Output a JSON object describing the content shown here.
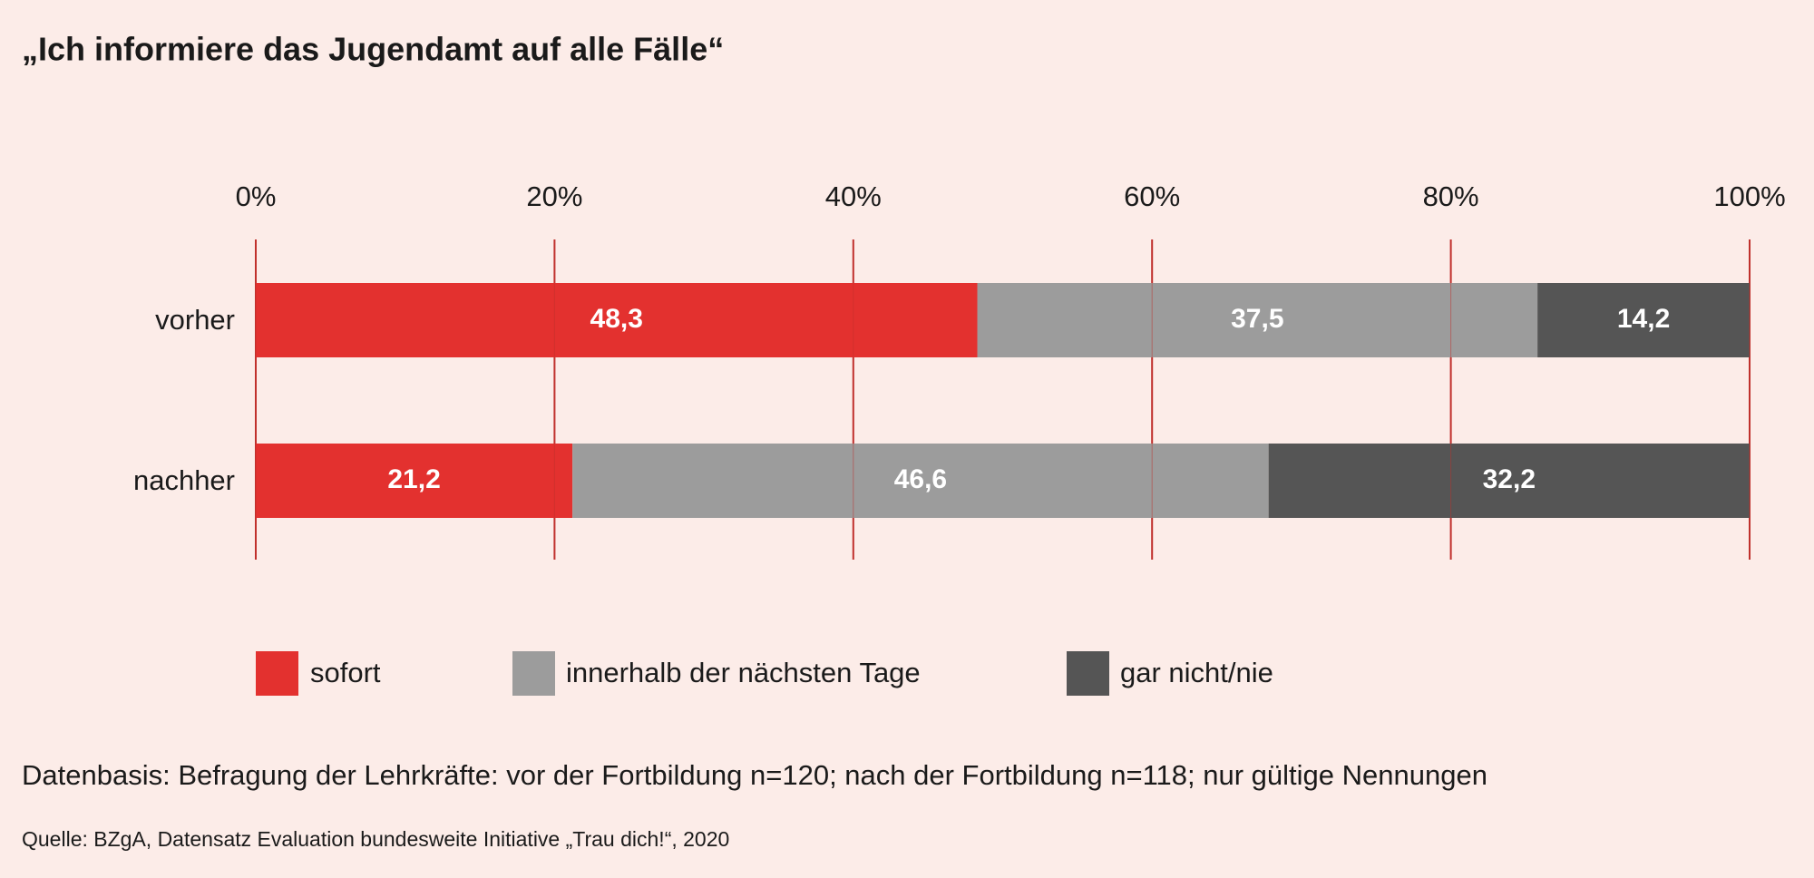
{
  "chart_data": {
    "type": "stacked-bar-horizontal",
    "title": "„Ich informiere das Jugendamt auf alle Fälle“",
    "categories": [
      "vorher",
      "nachher"
    ],
    "series": [
      {
        "name": "sofort",
        "color": "#e3312f",
        "values": [
          48.3,
          21.2
        ],
        "value_labels": [
          "48,3",
          "21,2"
        ]
      },
      {
        "name": "innerhalb der nächsten Tage",
        "color": "#9c9c9c",
        "values": [
          37.5,
          46.6
        ],
        "value_labels": [
          "37,5",
          "46,6"
        ]
      },
      {
        "name": "gar nicht/nie",
        "color": "#555555",
        "values": [
          14.2,
          32.2
        ],
        "value_labels": [
          "14,2",
          "32,2"
        ]
      }
    ],
    "xlim": [
      0,
      100
    ],
    "xticks": [
      {
        "value": 0,
        "label": "0%"
      },
      {
        "value": 20,
        "label": "20%"
      },
      {
        "value": 40,
        "label": "40%"
      },
      {
        "value": 60,
        "label": "60%"
      },
      {
        "value": 80,
        "label": "80%"
      },
      {
        "value": 100,
        "label": "100%"
      }
    ],
    "grid": true,
    "note": "Datenbasis: Befragung der Lehrkräfte: vor der Fortbildung n=120; nach der Fortbildung n=118; nur gültige Nennungen",
    "source": "Quelle: BZgA, Datensatz Evaluation bundesweite Initiative „Trau dich!“, 2020"
  }
}
